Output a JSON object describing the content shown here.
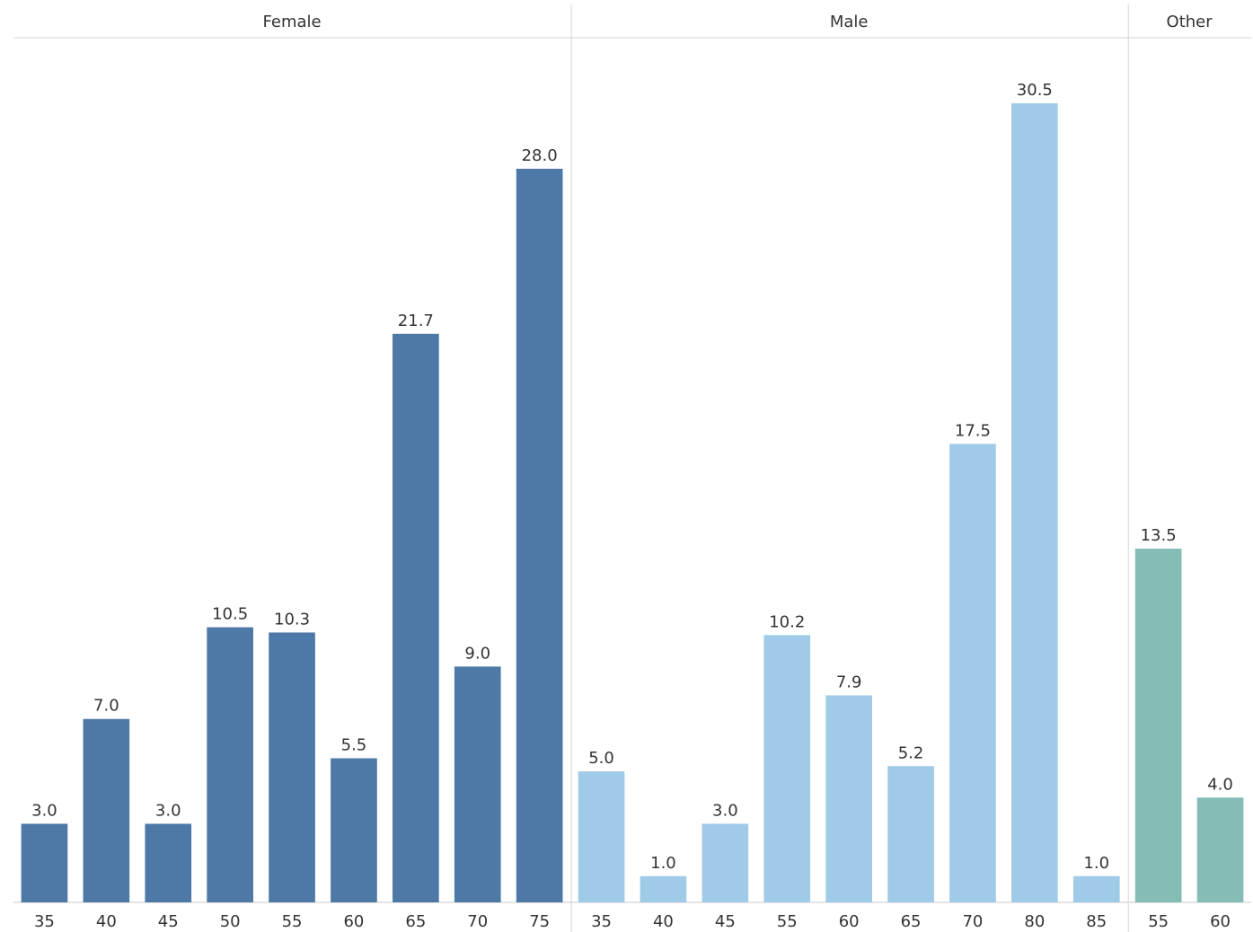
{
  "chart_data": {
    "type": "bar",
    "ylim": [
      0,
      33
    ],
    "grid": false,
    "title": "",
    "xlabel": "",
    "ylabel": "",
    "panels": [
      {
        "name": "Female",
        "color": "#4e79a7",
        "categories": [
          "35",
          "40",
          "45",
          "50",
          "55",
          "60",
          "65",
          "70",
          "75"
        ],
        "values": [
          3.0,
          7.0,
          3.0,
          10.5,
          10.3,
          5.5,
          21.7,
          9.0,
          28.0
        ],
        "labels": [
          "3.0",
          "7.0",
          "3.0",
          "10.5",
          "10.3",
          "5.5",
          "21.7",
          "9.0",
          "28.0"
        ]
      },
      {
        "name": "Male",
        "color": "#a0cbe8",
        "categories": [
          "35",
          "40",
          "45",
          "55",
          "60",
          "65",
          "70",
          "80",
          "85"
        ],
        "values": [
          5.0,
          1.0,
          3.0,
          10.2,
          7.9,
          5.2,
          17.5,
          30.5,
          1.0
        ],
        "labels": [
          "5.0",
          "1.0",
          "3.0",
          "10.2",
          "7.9",
          "5.2",
          "17.5",
          "30.5",
          "1.0"
        ]
      },
      {
        "name": "Other",
        "color": "#86bcb6",
        "categories": [
          "55",
          "60"
        ],
        "values": [
          13.5,
          4.0
        ],
        "labels": [
          "13.5",
          "4.0"
        ]
      }
    ]
  }
}
